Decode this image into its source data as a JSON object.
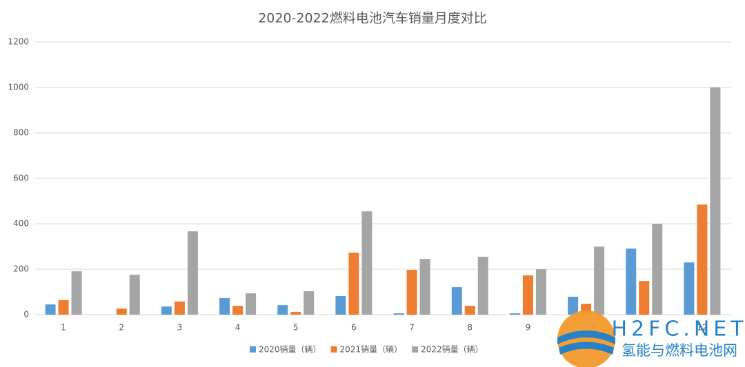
{
  "chart_data": {
    "type": "bar",
    "title": "2020-2022燃料电池汽车销量月度对比",
    "categories": [
      "1",
      "2",
      "3",
      "4",
      "5",
      "6",
      "7",
      "8",
      "9",
      null,
      null,
      "12"
    ],
    "series": [
      {
        "name": "2020销量（辆）",
        "color": "#5b9bd5",
        "values": [
          45,
          0,
          36,
          73,
          42,
          82,
          6,
          121,
          6,
          79,
          291,
          230
        ]
      },
      {
        "name": "2021销量（辆）",
        "color": "#ed7d31",
        "values": [
          64,
          27,
          58,
          39,
          12,
          273,
          197,
          39,
          173,
          48,
          148,
          485
        ]
      },
      {
        "name": "2022销量（辆）",
        "color": "#a5a5a5",
        "values": [
          191,
          176,
          367,
          94,
          103,
          455,
          245,
          255,
          200,
          300,
          400,
          1000
        ]
      }
    ],
    "ylim": [
      0,
      1200
    ],
    "yticks": [
      0,
      200,
      400,
      600,
      800,
      1000,
      1200
    ],
    "grid": true,
    "legend": "bottom"
  },
  "watermark": {
    "title": "H2FC.NET",
    "subtitle": "氢能与燃料电池网"
  }
}
